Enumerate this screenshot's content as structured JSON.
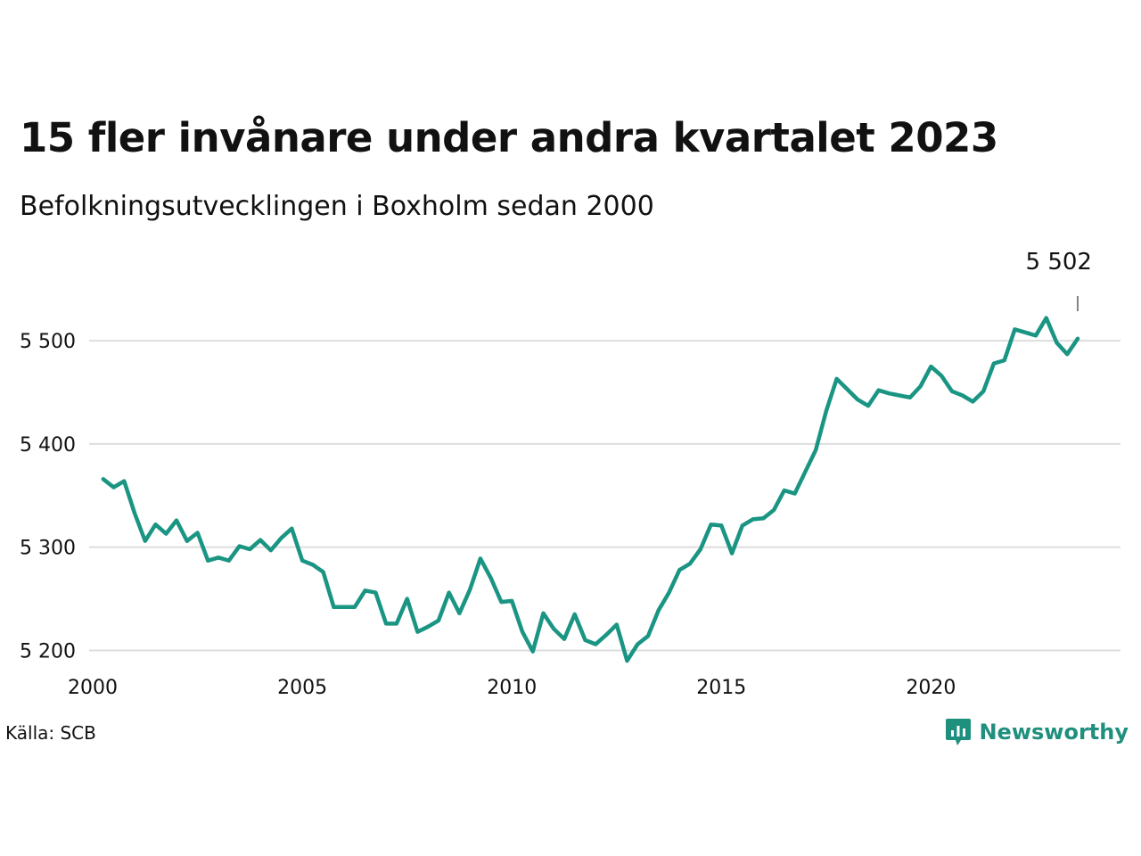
{
  "title": "15 fler invånare under andra kvartalet 2023",
  "subtitle": "Befolkningsutvecklingen i Boxholm sedan 2000",
  "source": "Källa: SCB",
  "brand": {
    "name": "Newsworthy",
    "icon": "newsworthy-logo-icon",
    "color": "#1f8f7e"
  },
  "colors": {
    "line": "#1a9583",
    "grid": "#dddddd",
    "annotation_tick": "#333333"
  },
  "chart_data": {
    "type": "line",
    "title": "15 fler invånare under andra kvartalet 2023",
    "subtitle": "Befolkningsutvecklingen i Boxholm sedan 2000",
    "xlabel": "",
    "ylabel": "",
    "xlim": [
      2000,
      2024.5
    ],
    "ylim": [
      5165,
      5545
    ],
    "x_ticks": [
      2000,
      2005,
      2010,
      2015,
      2020
    ],
    "x_tick_labels": [
      "2000",
      "2005",
      "2010",
      "2015",
      "2020"
    ],
    "y_ticks": [
      5200,
      5300,
      5400,
      5500
    ],
    "y_tick_labels": [
      "5 200",
      "5 300",
      "5 400",
      "5 500"
    ],
    "grid": "horizontal",
    "annotation": {
      "label": "5 502",
      "x": 2023.5,
      "y": 5502
    },
    "series": [
      {
        "x": [
          2000.25,
          2000.5,
          2000.75,
          2001.0,
          2001.25,
          2001.5,
          2001.75,
          2002.0,
          2002.25,
          2002.5,
          2002.75,
          2003.0,
          2003.25,
          2003.5,
          2003.75,
          2004.0,
          2004.25,
          2004.5,
          2004.75,
          2005.0,
          2005.25,
          2005.5,
          2005.75,
          2006.0,
          2006.25,
          2006.5,
          2006.75,
          2007.0,
          2007.25,
          2007.5,
          2007.75,
          2008.0,
          2008.25,
          2008.5,
          2008.75,
          2009.0,
          2009.25,
          2009.5,
          2009.75,
          2010.0,
          2010.25,
          2010.5,
          2010.75,
          2011.0,
          2011.25,
          2011.5,
          2011.75,
          2012.0,
          2012.25,
          2012.5,
          2012.75,
          2013.0,
          2013.25,
          2013.5,
          2013.75,
          2014.0,
          2014.25,
          2014.5,
          2014.75,
          2015.0,
          2015.25,
          2015.5,
          2015.75,
          2016.0,
          2016.25,
          2016.5,
          2016.75,
          2017.0,
          2017.25,
          2017.5,
          2017.75,
          2018.0,
          2018.25,
          2018.5,
          2018.75,
          2019.0,
          2019.25,
          2019.5,
          2019.75,
          2020.0,
          2020.25,
          2020.5,
          2020.75,
          2021.0,
          2021.25,
          2021.5,
          2021.75,
          2022.0,
          2022.25,
          2022.5,
          2022.75,
          2023.0,
          2023.25,
          2023.5
        ],
        "y": [
          5366,
          5358,
          5364,
          5333,
          5306,
          5322,
          5313,
          5326,
          5306,
          5314,
          5287,
          5290,
          5287,
          5301,
          5298,
          5307,
          5297,
          5309,
          5318,
          5287,
          5283,
          5276,
          5242,
          5242,
          5242,
          5258,
          5256,
          5226,
          5226,
          5250,
          5218,
          5223,
          5229,
          5256,
          5236,
          5259,
          5289,
          5270,
          5247,
          5248,
          5218,
          5199,
          5236,
          5221,
          5211,
          5235,
          5210,
          5206,
          5215,
          5225,
          5190,
          5206,
          5214,
          5239,
          5256,
          5278,
          5284,
          5298,
          5322,
          5321,
          5294,
          5321,
          5327,
          5328,
          5336,
          5355,
          5352,
          5373,
          5394,
          5432,
          5463,
          5453,
          5443,
          5437,
          5452,
          5449,
          5447,
          5445,
          5456,
          5475,
          5466,
          5451,
          5447,
          5441,
          5451,
          5478,
          5481,
          5511,
          5508,
          5505,
          5522,
          5498,
          5487,
          5502
        ]
      }
    ]
  }
}
